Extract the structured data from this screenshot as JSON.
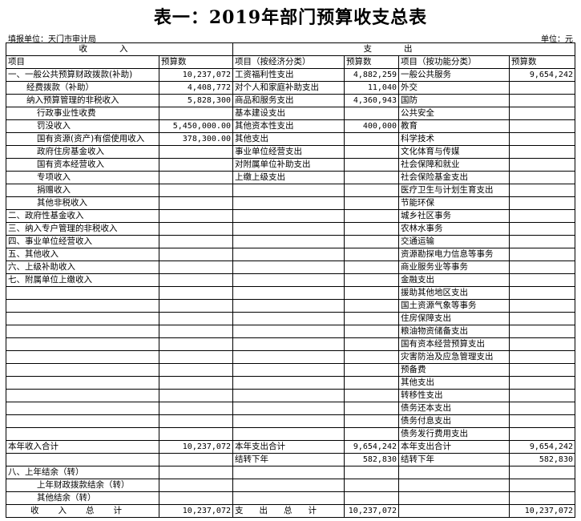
{
  "title": "表一：2019年部门预算收支总表",
  "unit_left": "填报单位：天门市审计局",
  "unit_right": "单位：元",
  "sections": {
    "income": "收入",
    "expense": "支出"
  },
  "headers": [
    "项目",
    "预算数",
    "项目（按经济分类）",
    "预算数",
    "项目（按功能分类）",
    "预算数"
  ],
  "rows": [
    {
      "level": 0,
      "cells": [
        "一、一般公共预算财政拨款(补助)",
        "10,237,072",
        "工资福利性支出",
        "4,882,259",
        "一般公共服务",
        "9,654,242"
      ]
    },
    {
      "level": 1,
      "cells": [
        "经费拨款（补助）",
        "4,408,772",
        "对个人和家庭补助支出",
        "11,040",
        "外交",
        ""
      ]
    },
    {
      "level": 1,
      "cells": [
        "纳入预算管理的非税收入",
        "5,828,300",
        "商品和服务支出",
        "4,360,943",
        "国防",
        ""
      ]
    },
    {
      "level": 2,
      "cells": [
        "行政事业性收费",
        "",
        "基本建设支出",
        "",
        "公共安全",
        ""
      ]
    },
    {
      "level": 2,
      "cells": [
        "罚没收入",
        "5,450,000.00",
        "其他资本性支出",
        "400,000",
        "教育",
        ""
      ]
    },
    {
      "level": 2,
      "cells": [
        "国有资源(资产)有偿使用收入",
        "378,300.00",
        "其他支出",
        "",
        "科学技术",
        ""
      ]
    },
    {
      "level": 2,
      "cells": [
        "政府住房基金收入",
        "",
        "事业单位经营支出",
        "",
        "文化体育与传媒",
        ""
      ]
    },
    {
      "level": 2,
      "cells": [
        "国有资本经营收入",
        "",
        "对附属单位补助支出",
        "",
        "社会保障和就业",
        ""
      ]
    },
    {
      "level": 2,
      "cells": [
        "专项收入",
        "",
        "上缴上级支出",
        "",
        "社会保险基金支出",
        ""
      ]
    },
    {
      "level": 2,
      "cells": [
        "捐赠收入",
        "",
        "",
        "",
        "医疗卫生与计划生育支出",
        ""
      ]
    },
    {
      "level": 2,
      "cells": [
        "其他非税收入",
        "",
        "",
        "",
        "节能环保",
        ""
      ]
    },
    {
      "level": 0,
      "cells": [
        "二、政府性基金收入",
        "",
        "",
        "",
        "城乡社区事务",
        ""
      ]
    },
    {
      "level": 0,
      "cells": [
        "三、纳入专户管理的非税收入",
        "",
        "",
        "",
        "农林水事务",
        ""
      ]
    },
    {
      "level": 0,
      "cells": [
        "四、事业单位经营收入",
        "",
        "",
        "",
        "交通运输",
        ""
      ]
    },
    {
      "level": 0,
      "cells": [
        "五、其他收入",
        "",
        "",
        "",
        "资源勘探电力信息等事务",
        ""
      ]
    },
    {
      "level": 0,
      "cells": [
        "六、上级补助收入",
        "",
        "",
        "",
        "商业服务业等事务",
        ""
      ]
    },
    {
      "level": 0,
      "cells": [
        "七、附属单位上缴收入",
        "",
        "",
        "",
        "金融支出",
        ""
      ]
    },
    {
      "level": 0,
      "cells": [
        "",
        "",
        "",
        "",
        "援助其他地区支出",
        ""
      ]
    },
    {
      "level": 0,
      "cells": [
        "",
        "",
        "",
        "",
        "国土资源气象等事务",
        ""
      ]
    },
    {
      "level": 0,
      "cells": [
        "",
        "",
        "",
        "",
        "住房保障支出",
        ""
      ]
    },
    {
      "level": 0,
      "cells": [
        "",
        "",
        "",
        "",
        "粮油物资储备支出",
        ""
      ]
    },
    {
      "level": 0,
      "cells": [
        "",
        "",
        "",
        "",
        "国有资本经营预算支出",
        ""
      ]
    },
    {
      "level": 0,
      "cells": [
        "",
        "",
        "",
        "",
        "灾害防治及应急管理支出",
        ""
      ]
    },
    {
      "level": 0,
      "cells": [
        "",
        "",
        "",
        "",
        "预备费",
        ""
      ]
    },
    {
      "level": 0,
      "cells": [
        "",
        "",
        "",
        "",
        "其他支出",
        ""
      ]
    },
    {
      "level": 0,
      "cells": [
        "",
        "",
        "",
        "",
        "转移性支出",
        ""
      ]
    },
    {
      "level": 0,
      "cells": [
        "",
        "",
        "",
        "",
        "债务还本支出",
        ""
      ]
    },
    {
      "level": 0,
      "cells": [
        "",
        "",
        "",
        "",
        "债务付息支出",
        ""
      ]
    },
    {
      "level": 0,
      "cells": [
        "",
        "",
        "",
        "",
        "债务发行费用支出",
        ""
      ]
    },
    {
      "level": 0,
      "cells": [
        "本年收入合计",
        "10,237,072",
        "本年支出合计",
        "9,654,242",
        "本年支出合计",
        "9,654,242"
      ]
    },
    {
      "level": 0,
      "cells": [
        "",
        "",
        "结转下年",
        "582,830",
        "结转下年",
        "582,830"
      ]
    },
    {
      "level": 0,
      "cells": [
        "八、上年结余（转）",
        "",
        "",
        "",
        "",
        ""
      ]
    },
    {
      "level": "b",
      "cells": [
        "上年财政拨款结余（转）",
        "",
        "",
        "",
        "",
        ""
      ]
    },
    {
      "level": "b",
      "cells": [
        "其他结余（转）",
        "",
        "",
        "",
        "",
        ""
      ]
    },
    {
      "level": "total",
      "cells": [
        "收入总计",
        "10,237,072",
        "支出总计",
        "10,237,072",
        "",
        "10,237,072"
      ]
    }
  ]
}
